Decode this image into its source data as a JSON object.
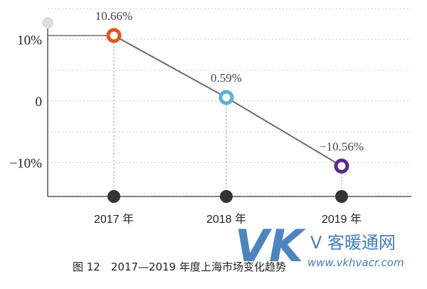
{
  "chart_data": {
    "type": "line",
    "categories": [
      "2017 年",
      "2018 年",
      "2019 年"
    ],
    "values": [
      10.66,
      0.59,
      -10.56
    ],
    "data_labels": [
      "10.66%",
      "0.59%",
      "−10.56%"
    ],
    "y_ticks": [
      {
        "value": 10,
        "label": "10%"
      },
      {
        "value": 0,
        "label": "0"
      },
      {
        "value": -10,
        "label": "−10%"
      }
    ],
    "ylim": [
      -15.5,
      15.5
    ],
    "grid": true,
    "marker_colors": [
      "#e8531f",
      "#5aaee0",
      "#5c2a86"
    ],
    "line_color": "#6b6b6b"
  },
  "caption": "图 12　2017—2019 年度上海市场变化趋势",
  "watermark": {
    "logo": "VK",
    "name": "V 客暖通网",
    "url": "www.vkhvacr.com"
  }
}
